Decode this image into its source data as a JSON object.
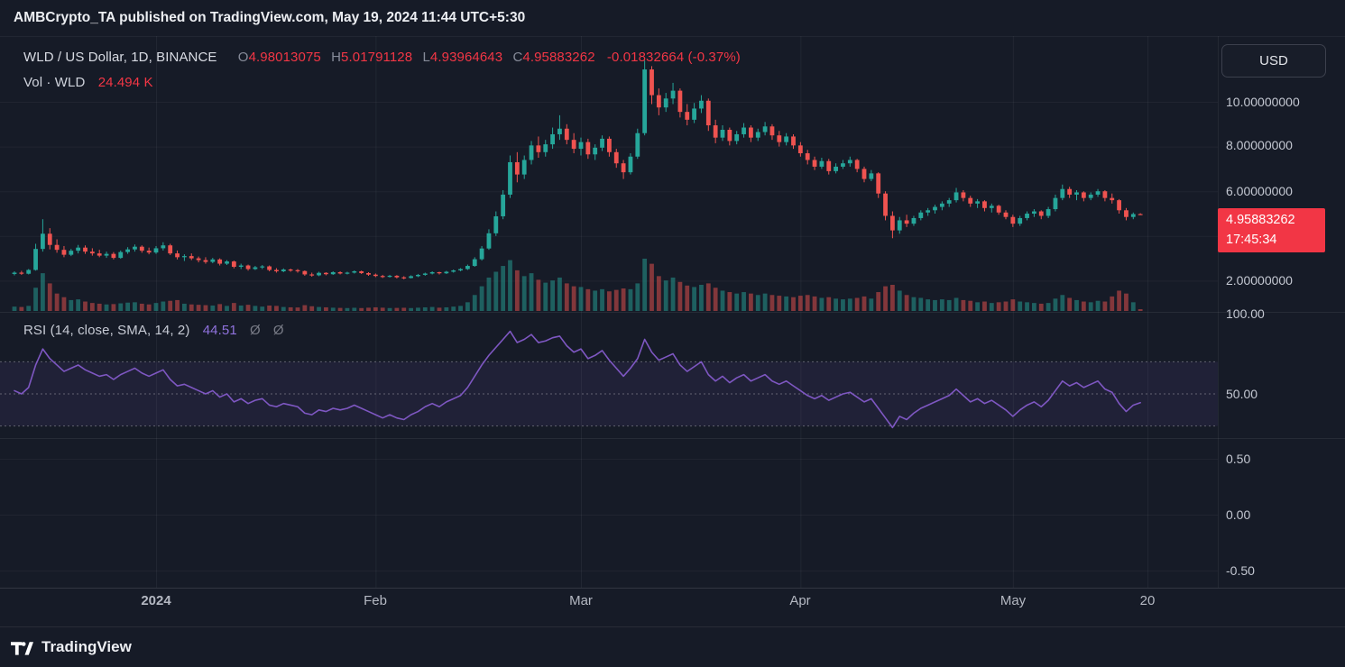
{
  "header": {
    "publication_text": "AMBCrypto_TA published on TradingView.com, May 19, 2024 11:44 UTC+5:30"
  },
  "legend": {
    "title": "WLD / US Dollar, 1D, BINANCE",
    "o_label": "O",
    "o": "4.98013075",
    "h_label": "H",
    "h": "5.01791128",
    "l_label": "L",
    "l": "4.93964643",
    "c_label": "C",
    "c": "4.95883262",
    "change": "-0.01832664 (-0.37%)",
    "vol_label": "Vol · WLD",
    "vol_value": "24.494 K"
  },
  "rsi_legend": {
    "label": "RSI (14, close, SMA, 14, 2)",
    "value": "44.51",
    "hidden": "Ø Ø"
  },
  "currency_button": "USD",
  "price_badge": {
    "price": "4.95883262",
    "time": "17:45:34"
  },
  "scales": {
    "price": [
      "10.00000000",
      "8.00000000",
      "6.00000000",
      "2.00000000"
    ],
    "rsi": [
      "100.00",
      "50.00"
    ],
    "lower": [
      "0.50",
      "0.00",
      "-0.50"
    ]
  },
  "time_axis": [
    "2024",
    "Feb",
    "Mar",
    "Apr",
    "May",
    "20"
  ],
  "footer": {
    "brand": "TradingView"
  },
  "chart_data": {
    "type": "candlestick",
    "symbol": "WLD/USD",
    "exchange": "BINANCE",
    "interval": "1D",
    "x_start": "2023-12-12",
    "price_axis_ticks": [
      10,
      8,
      6,
      2
    ],
    "last_price": 4.95883262,
    "volume_max": 720,
    "rsi_bands": [
      70,
      50,
      30
    ],
    "tick_days": [
      20,
      51,
      80,
      111,
      141,
      160
    ],
    "colors": {
      "up": "#26a69a",
      "down": "#ef5350",
      "rsi": "#7e57c2",
      "band": "rgba(126,87,194,0.10)",
      "accent_red": "#f23645"
    },
    "candles": [
      [
        2.3,
        2.42,
        2.24,
        2.36,
        60
      ],
      [
        2.36,
        2.44,
        2.26,
        2.31,
        55
      ],
      [
        2.31,
        2.52,
        2.28,
        2.48,
        70
      ],
      [
        2.48,
        3.65,
        2.45,
        3.42,
        320
      ],
      [
        3.42,
        4.75,
        3.3,
        4.1,
        520
      ],
      [
        4.1,
        4.35,
        3.4,
        3.6,
        380
      ],
      [
        3.6,
        3.85,
        3.25,
        3.38,
        240
      ],
      [
        3.38,
        3.55,
        3.05,
        3.16,
        190
      ],
      [
        3.16,
        3.42,
        3.1,
        3.34,
        150
      ],
      [
        3.34,
        3.6,
        3.22,
        3.48,
        160
      ],
      [
        3.48,
        3.58,
        3.2,
        3.3,
        130
      ],
      [
        3.3,
        3.45,
        3.12,
        3.22,
        110
      ],
      [
        3.22,
        3.38,
        3.05,
        3.12,
        100
      ],
      [
        3.12,
        3.3,
        3.02,
        3.2,
        90
      ],
      [
        3.2,
        3.28,
        2.95,
        3.02,
        95
      ],
      [
        3.02,
        3.35,
        2.98,
        3.28,
        105
      ],
      [
        3.28,
        3.5,
        3.2,
        3.4,
        115
      ],
      [
        3.4,
        3.62,
        3.3,
        3.52,
        120
      ],
      [
        3.52,
        3.58,
        3.25,
        3.34,
        100
      ],
      [
        3.34,
        3.48,
        3.18,
        3.26,
        90
      ],
      [
        3.26,
        3.55,
        3.2,
        3.45,
        110
      ],
      [
        3.45,
        3.72,
        3.35,
        3.58,
        130
      ],
      [
        3.58,
        3.65,
        3.15,
        3.22,
        140
      ],
      [
        3.22,
        3.35,
        2.95,
        3.05,
        150
      ],
      [
        3.05,
        3.18,
        2.88,
        3.1,
        100
      ],
      [
        3.1,
        3.22,
        2.92,
        3.0,
        90
      ],
      [
        3.0,
        3.08,
        2.82,
        2.92,
        85
      ],
      [
        2.92,
        3.05,
        2.76,
        2.84,
        80
      ],
      [
        2.84,
        3.02,
        2.78,
        2.95,
        75
      ],
      [
        2.95,
        3.0,
        2.68,
        2.76,
        95
      ],
      [
        2.76,
        2.92,
        2.7,
        2.86,
        70
      ],
      [
        2.86,
        2.9,
        2.55,
        2.62,
        110
      ],
      [
        2.62,
        2.76,
        2.52,
        2.68,
        75
      ],
      [
        2.68,
        2.72,
        2.45,
        2.52,
        85
      ],
      [
        2.52,
        2.66,
        2.48,
        2.6,
        70
      ],
      [
        2.6,
        2.7,
        2.52,
        2.64,
        60
      ],
      [
        2.64,
        2.68,
        2.42,
        2.48,
        75
      ],
      [
        2.48,
        2.56,
        2.36,
        2.42,
        70
      ],
      [
        2.42,
        2.55,
        2.38,
        2.5,
        55
      ],
      [
        2.5,
        2.54,
        2.4,
        2.47,
        50
      ],
      [
        2.47,
        2.52,
        2.36,
        2.43,
        48
      ],
      [
        2.43,
        2.46,
        2.22,
        2.28,
        80
      ],
      [
        2.28,
        2.36,
        2.18,
        2.24,
        65
      ],
      [
        2.24,
        2.4,
        2.2,
        2.35,
        55
      ],
      [
        2.35,
        2.38,
        2.24,
        2.29,
        50
      ],
      [
        2.29,
        2.42,
        2.26,
        2.38,
        45
      ],
      [
        2.38,
        2.42,
        2.28,
        2.32,
        42
      ],
      [
        2.32,
        2.4,
        2.28,
        2.36,
        40
      ],
      [
        2.36,
        2.46,
        2.32,
        2.42,
        44
      ],
      [
        2.42,
        2.45,
        2.3,
        2.34,
        40
      ],
      [
        2.34,
        2.38,
        2.22,
        2.27,
        45
      ],
      [
        2.27,
        2.32,
        2.16,
        2.21,
        50
      ],
      [
        2.21,
        2.26,
        2.12,
        2.17,
        45
      ],
      [
        2.17,
        2.26,
        2.14,
        2.22,
        40
      ],
      [
        2.22,
        2.25,
        2.1,
        2.15,
        42
      ],
      [
        2.15,
        2.2,
        2.06,
        2.12,
        44
      ],
      [
        2.12,
        2.24,
        2.1,
        2.2,
        40
      ],
      [
        2.2,
        2.3,
        2.16,
        2.26,
        45
      ],
      [
        2.26,
        2.36,
        2.22,
        2.32,
        50
      ],
      [
        2.32,
        2.42,
        2.28,
        2.38,
        55
      ],
      [
        2.38,
        2.4,
        2.28,
        2.33,
        45
      ],
      [
        2.33,
        2.44,
        2.3,
        2.4,
        50
      ],
      [
        2.4,
        2.5,
        2.36,
        2.46,
        60
      ],
      [
        2.46,
        2.56,
        2.42,
        2.52,
        70
      ],
      [
        2.52,
        2.72,
        2.48,
        2.66,
        120
      ],
      [
        2.66,
        3.05,
        2.62,
        2.96,
        220
      ],
      [
        2.96,
        3.55,
        2.9,
        3.44,
        340
      ],
      [
        3.44,
        4.3,
        3.38,
        4.12,
        460
      ],
      [
        4.12,
        5.1,
        4.0,
        4.88,
        540
      ],
      [
        4.88,
        6.05,
        4.75,
        5.85,
        620
      ],
      [
        5.85,
        7.6,
        5.7,
        7.3,
        700
      ],
      [
        7.3,
        7.75,
        6.4,
        6.75,
        560
      ],
      [
        6.75,
        7.6,
        6.55,
        7.4,
        480
      ],
      [
        7.4,
        8.25,
        7.2,
        8.05,
        520
      ],
      [
        8.05,
        8.45,
        7.5,
        7.75,
        430
      ],
      [
        7.75,
        8.3,
        7.55,
        8.1,
        390
      ],
      [
        8.1,
        8.85,
        7.9,
        8.55,
        420
      ],
      [
        8.55,
        9.4,
        8.3,
        8.8,
        460
      ],
      [
        8.8,
        9.0,
        8.1,
        8.3,
        380
      ],
      [
        8.3,
        8.6,
        7.7,
        7.9,
        340
      ],
      [
        7.9,
        8.4,
        7.6,
        8.2,
        330
      ],
      [
        8.2,
        8.35,
        7.45,
        7.65,
        300
      ],
      [
        7.65,
        8.1,
        7.4,
        7.95,
        280
      ],
      [
        7.95,
        8.5,
        7.8,
        8.35,
        300
      ],
      [
        8.35,
        8.45,
        7.55,
        7.75,
        270
      ],
      [
        7.75,
        7.9,
        7.05,
        7.25,
        290
      ],
      [
        7.25,
        7.4,
        6.55,
        6.85,
        310
      ],
      [
        6.85,
        7.7,
        6.75,
        7.55,
        300
      ],
      [
        7.55,
        8.8,
        7.45,
        8.6,
        380
      ],
      [
        8.6,
        11.85,
        8.5,
        11.45,
        720
      ],
      [
        11.45,
        11.6,
        9.9,
        10.3,
        650
      ],
      [
        10.3,
        10.6,
        9.4,
        9.75,
        480
      ],
      [
        9.75,
        10.4,
        9.55,
        10.15,
        420
      ],
      [
        10.15,
        10.85,
        9.9,
        10.5,
        460
      ],
      [
        10.5,
        10.6,
        9.3,
        9.55,
        400
      ],
      [
        9.55,
        9.9,
        8.95,
        9.2,
        350
      ],
      [
        9.2,
        9.95,
        9.05,
        9.7,
        330
      ],
      [
        9.7,
        10.3,
        9.5,
        10.05,
        360
      ],
      [
        10.05,
        10.15,
        8.7,
        8.95,
        380
      ],
      [
        8.95,
        9.2,
        8.15,
        8.4,
        320
      ],
      [
        8.4,
        8.95,
        8.25,
        8.75,
        280
      ],
      [
        8.75,
        8.85,
        8.05,
        8.25,
        260
      ],
      [
        8.25,
        8.7,
        8.1,
        8.55,
        240
      ],
      [
        8.55,
        9.05,
        8.4,
        8.85,
        260
      ],
      [
        8.85,
        8.95,
        8.2,
        8.4,
        240
      ],
      [
        8.4,
        8.8,
        8.25,
        8.65,
        220
      ],
      [
        8.65,
        9.1,
        8.5,
        8.9,
        240
      ],
      [
        8.9,
        9.0,
        8.3,
        8.5,
        220
      ],
      [
        8.5,
        8.7,
        8.0,
        8.2,
        210
      ],
      [
        8.2,
        8.6,
        8.05,
        8.45,
        200
      ],
      [
        8.45,
        8.55,
        7.9,
        8.05,
        190
      ],
      [
        8.05,
        8.2,
        7.55,
        7.7,
        210
      ],
      [
        7.7,
        7.85,
        7.2,
        7.4,
        220
      ],
      [
        7.4,
        7.55,
        6.95,
        7.1,
        200
      ],
      [
        7.1,
        7.5,
        7.0,
        7.35,
        180
      ],
      [
        7.35,
        7.45,
        6.75,
        6.9,
        190
      ],
      [
        6.9,
        7.25,
        6.8,
        7.1,
        170
      ],
      [
        7.1,
        7.4,
        7.0,
        7.25,
        160
      ],
      [
        7.25,
        7.55,
        7.1,
        7.4,
        170
      ],
      [
        7.4,
        7.45,
        6.85,
        7.0,
        180
      ],
      [
        7.0,
        7.1,
        6.4,
        6.55,
        200
      ],
      [
        6.55,
        6.95,
        6.45,
        6.8,
        170
      ],
      [
        6.8,
        6.85,
        5.7,
        5.9,
        260
      ],
      [
        5.9,
        6.0,
        4.7,
        4.9,
        340
      ],
      [
        4.9,
        5.1,
        3.9,
        4.25,
        360
      ],
      [
        4.25,
        4.85,
        4.1,
        4.7,
        280
      ],
      [
        4.7,
        4.95,
        4.4,
        4.55,
        220
      ],
      [
        4.55,
        4.9,
        4.45,
        4.8,
        190
      ],
      [
        4.8,
        5.15,
        4.7,
        5.05,
        180
      ],
      [
        5.05,
        5.25,
        4.9,
        5.15,
        160
      ],
      [
        5.15,
        5.4,
        5.0,
        5.3,
        150
      ],
      [
        5.3,
        5.55,
        5.15,
        5.45,
        160
      ],
      [
        5.45,
        5.7,
        5.3,
        5.6,
        150
      ],
      [
        5.6,
        6.15,
        5.5,
        5.95,
        180
      ],
      [
        5.95,
        6.05,
        5.55,
        5.7,
        150
      ],
      [
        5.7,
        5.8,
        5.3,
        5.45,
        140
      ],
      [
        5.45,
        5.65,
        5.25,
        5.55,
        120
      ],
      [
        5.55,
        5.6,
        5.1,
        5.25,
        130
      ],
      [
        5.25,
        5.45,
        5.05,
        5.35,
        110
      ],
      [
        5.35,
        5.4,
        4.95,
        5.05,
        120
      ],
      [
        5.05,
        5.15,
        4.75,
        4.85,
        130
      ],
      [
        4.85,
        4.95,
        4.4,
        4.55,
        160
      ],
      [
        4.55,
        4.9,
        4.45,
        4.8,
        130
      ],
      [
        4.8,
        5.1,
        4.7,
        5.0,
        120
      ],
      [
        5.0,
        5.2,
        4.85,
        5.1,
        110
      ],
      [
        5.1,
        5.15,
        4.75,
        4.9,
        100
      ],
      [
        4.9,
        5.3,
        4.8,
        5.2,
        110
      ],
      [
        5.2,
        5.85,
        5.1,
        5.7,
        170
      ],
      [
        5.7,
        6.3,
        5.6,
        6.1,
        220
      ],
      [
        6.1,
        6.2,
        5.7,
        5.85,
        180
      ],
      [
        5.85,
        6.05,
        5.6,
        5.95,
        150
      ],
      [
        5.95,
        6.0,
        5.55,
        5.7,
        130
      ],
      [
        5.7,
        5.95,
        5.6,
        5.85,
        120
      ],
      [
        5.85,
        6.1,
        5.75,
        6.0,
        140
      ],
      [
        6.0,
        6.05,
        5.55,
        5.7,
        130
      ],
      [
        5.7,
        5.9,
        5.45,
        5.6,
        200
      ],
      [
        5.6,
        5.65,
        5.0,
        5.15,
        280
      ],
      [
        5.15,
        5.25,
        4.7,
        4.85,
        240
      ],
      [
        4.85,
        5.05,
        4.75,
        4.98,
        120
      ],
      [
        4.98013075,
        5.01791128,
        4.93964643,
        4.95883262,
        24.494
      ]
    ],
    "rsi": [
      52,
      50,
      54,
      68,
      78,
      72,
      68,
      64,
      66,
      68,
      65,
      63,
      61,
      62,
      59,
      62,
      64,
      66,
      63,
      61,
      63,
      65,
      59,
      55,
      56,
      54,
      52,
      50,
      52,
      48,
      50,
      45,
      47,
      44,
      46,
      47,
      43,
      42,
      44,
      43,
      42,
      38,
      37,
      40,
      39,
      41,
      40,
      41,
      43,
      41,
      39,
      37,
      35,
      37,
      35,
      34,
      37,
      39,
      42,
      44,
      42,
      45,
      47,
      49,
      54,
      61,
      68,
      74,
      79,
      84,
      89,
      82,
      84,
      87,
      82,
      83,
      85,
      86,
      80,
      76,
      78,
      72,
      74,
      77,
      71,
      66,
      61,
      66,
      72,
      84,
      76,
      71,
      73,
      75,
      68,
      64,
      67,
      70,
      62,
      58,
      61,
      57,
      60,
      62,
      58,
      60,
      62,
      58,
      56,
      58,
      55,
      52,
      49,
      47,
      49,
      46,
      48,
      50,
      51,
      48,
      45,
      47,
      41,
      35,
      29,
      36,
      34,
      38,
      41,
      43,
      45,
      47,
      49,
      53,
      49,
      45,
      47,
      44,
      46,
      43,
      40,
      36,
      40,
      43,
      45,
      42,
      46,
      52,
      58,
      55,
      57,
      54,
      56,
      58,
      53,
      51,
      44,
      39,
      43,
      44.51
    ]
  }
}
